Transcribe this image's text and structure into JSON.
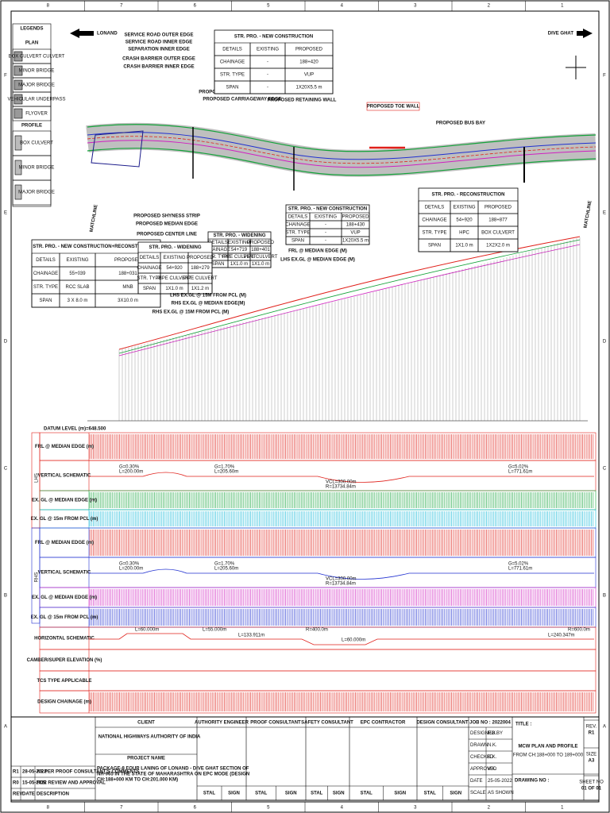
{
  "grid": {
    "columns": [
      "8",
      "7",
      "6",
      "5",
      "4",
      "3",
      "2",
      "1"
    ],
    "rows": [
      "F",
      "E",
      "D",
      "C",
      "B",
      "A"
    ]
  },
  "directions": {
    "left": "LONAND",
    "right": "DIVE GHAT"
  },
  "legends": {
    "title": "LEGENDS",
    "plan_heading": "PLAN",
    "plan_items": [
      "BOX CULVERT CULVERT",
      "MINOR BRIDGE",
      "MAJOR BRIDGE",
      "VEHICULAR UNDERPASS",
      "FLYOVER"
    ],
    "profile_heading": "PROFILE",
    "profile_items": [
      "BOX CULVERT",
      "MINOR BRIDGE",
      "MAJOR BRIDGE"
    ]
  },
  "plan_labels": [
    "SERVICE ROAD OUTER EDGE",
    "SERVICE ROAD INNER EDGE",
    "SEPARATION INNER EDGE",
    "CRASH BARRIER OUTER EDGE",
    "CRASH BARRIER INNER EDGE",
    "PROPOSED PAVED SHOULDER EDGE",
    "PROPOSED CARRIAGEWAY EDGE",
    "PROPOSED RETAINING WALL",
    "PROPOSED TOE WALL",
    "PROPOSED BUS BAY",
    "PROPOSED SHYNESS STRIP",
    "PROPOSED MEDIAN EDGE",
    "PROPOSED CENTER LINE",
    "MATCHLINE",
    "MATCHLINE"
  ],
  "structure_tables": [
    {
      "title": "STR. PRO. - NEW CONSTRUCTION",
      "header": [
        "DETAILS",
        "EXISTING",
        "PROPOSED"
      ],
      "rows": [
        [
          "CHAINAGE",
          "-",
          "188+420"
        ],
        [
          "STR. TYPE",
          "-",
          "VUP"
        ],
        [
          "SPAN",
          "-",
          "1X20X5.5 m"
        ]
      ]
    },
    {
      "title": "STR. PRO. - RECONSTRUCTION",
      "header": [
        "DETAILS",
        "EXISTING",
        "PROPOSED"
      ],
      "rows": [
        [
          "CHAINAGE",
          "54+920",
          "188+877"
        ],
        [
          "STR. TYPE",
          "HPC",
          "BOX CULVERT"
        ],
        [
          "SPAN",
          "1X1.0 m",
          "1X2X2.0 m"
        ]
      ]
    },
    {
      "title": "STR. PRO. - NEW CONSTRUCTION",
      "header": [
        "DETAILS",
        "EXISTING",
        "PROPOSED"
      ],
      "rows": [
        [
          "CHAINAGE",
          "-",
          "188+430"
        ],
        [
          "STR. TYPE",
          "-",
          "VUP"
        ],
        [
          "SPAN",
          "-",
          "1X20X5.5 m"
        ]
      ]
    },
    {
      "title": "STR. PRO. - WIDENING",
      "header": [
        "DETAILS",
        "EXISTING",
        "PROPOSED"
      ],
      "rows": [
        [
          "CHAINAGE",
          "54+719",
          "188+401"
        ],
        [
          "STR. TYPE",
          "PIPE CULVERT",
          "PIPE CULVERT"
        ],
        [
          "SPAN",
          "1X1.0 m",
          "1X1.0 m"
        ]
      ]
    },
    {
      "title": "STR. PRO. - NEW CONSTRUCTION+RECONSTRUCTION",
      "header": [
        "DETAILS",
        "EXISTING",
        "PROPOSED"
      ],
      "rows": [
        [
          "CHAINAGE",
          "55+039",
          "188+031"
        ],
        [
          "STR. TYPE",
          "RCC SLAB",
          "MNB"
        ],
        [
          "SPAN",
          "3 X 8.0 m",
          "3X10.0 m"
        ]
      ]
    },
    {
      "title": "STR. PRO. - WIDENING",
      "header": [
        "DETAILS",
        "EXISTING",
        "PROPOSED"
      ],
      "rows": [
        [
          "CHAINAGE",
          "54+920",
          "188+279"
        ],
        [
          "STR. TYPE",
          "PIPE CULVERT",
          "PIPE CULVERT"
        ],
        [
          "SPAN",
          "1X1.0 m",
          "1X1.2 m"
        ]
      ]
    }
  ],
  "profile_labels": [
    "FRL @ MEDIAN EDGE (M)",
    "LHS EX.GL @ MEDIAN EDGE (M)",
    "LHS EX.GL @ 15M FROM PCL (M)",
    "RHS EX.GL @ MEDIAN EDGE(M)",
    "RHS EX.GL @ 15M FROM PCL (M)"
  ],
  "datum": "DATUM LEVEL (m)=648.500",
  "band": {
    "side_labels": [
      "LHS",
      "RHS"
    ],
    "rows": [
      "FRL @ MEDIAN EDGE (m)",
      "VERTICAL SCHEMATIC",
      "EX. GL @ MEDIAN EDGE (m)",
      "EX. GL @ 15m FROM PCL (m)",
      "FRL @ MEDIAN EDGE (m)",
      "VERTICAL SCHEMATIC",
      "EX. GL @ MEDIAN EDGE (m)",
      "EX. GL @ 15m FROM PCL (m)",
      "HORIZONTAL SCHEMATIC",
      "CAMBER/SUPER ELEVATION (%)",
      "TCS TYPE APPLICABLE",
      "DESIGN CHAINAGE (m)"
    ],
    "schematic_labels": [
      "G=0.30%",
      "L=200.00m",
      "G=1.70%",
      "L=205.60m",
      "VCL=300.00m",
      "R=13734.84m",
      "G=5.02%",
      "L=771.61m",
      "L=60.000m",
      "L=55.000m",
      "L=133.911m",
      "L=60.000m",
      "L=240.347m",
      "R=600.0m",
      "R=400.0m"
    ]
  },
  "title_block": {
    "client_heading": "CLIENT",
    "client": "NATIONAL HIGHWAYS AUTHORITY OF INDIA",
    "project_heading": "PROJECT NAME",
    "project": [
      "PACKAGE-8 FOUR LANING OF LONAND - DIVE GHAT SECTION OF",
      "NH-965 IN THE STATE OF MAHARASHTRA ON EPC MODE (DESIGN",
      "CH:188+000 KM TO CH:201.000 KM)"
    ],
    "authority_heading": "AUTHORITY ENGINEER",
    "proof_heading": "PROOF CONSULTANT",
    "safety_heading": "SAFETY CONSULTANT",
    "epc_heading": "EPC CONTRACTOR",
    "design_heading": "DESIGN CONSULTANT",
    "stal": "STAL",
    "sign": "SIGN",
    "revisions": [
      [
        "R1",
        "28-05-2022",
        "AS PER PROOF CONSULTANT'S COMMENTS"
      ],
      [
        "R0",
        "15-05-2022",
        "FOR REVIEW AND APPROVAL"
      ],
      [
        "REV.",
        "DATE",
        "DESCRIPTION"
      ]
    ],
    "job_no": "JOB NO : 2022004",
    "signoff": [
      [
        "DESIGNED BY",
        "R.K."
      ],
      [
        "DRAWN",
        "N.K."
      ],
      [
        "CHECKED",
        "K.K."
      ],
      [
        "APPROVED",
        "V.K."
      ],
      [
        "DATE",
        "25-05-2022"
      ],
      [
        "SCALE",
        "AS SHOWN"
      ]
    ],
    "title_heading": "TITLE :",
    "title": "MCW PLAN AND PROFILE",
    "title_sub": "FROM CH:188+000 TO 189+000",
    "drawing_no": "DRAWING NO :",
    "rev": [
      "REV.",
      "R1"
    ],
    "size": [
      "SIZE",
      "A3"
    ],
    "sheet": [
      "SHEET NO",
      "01 OF 01"
    ]
  }
}
